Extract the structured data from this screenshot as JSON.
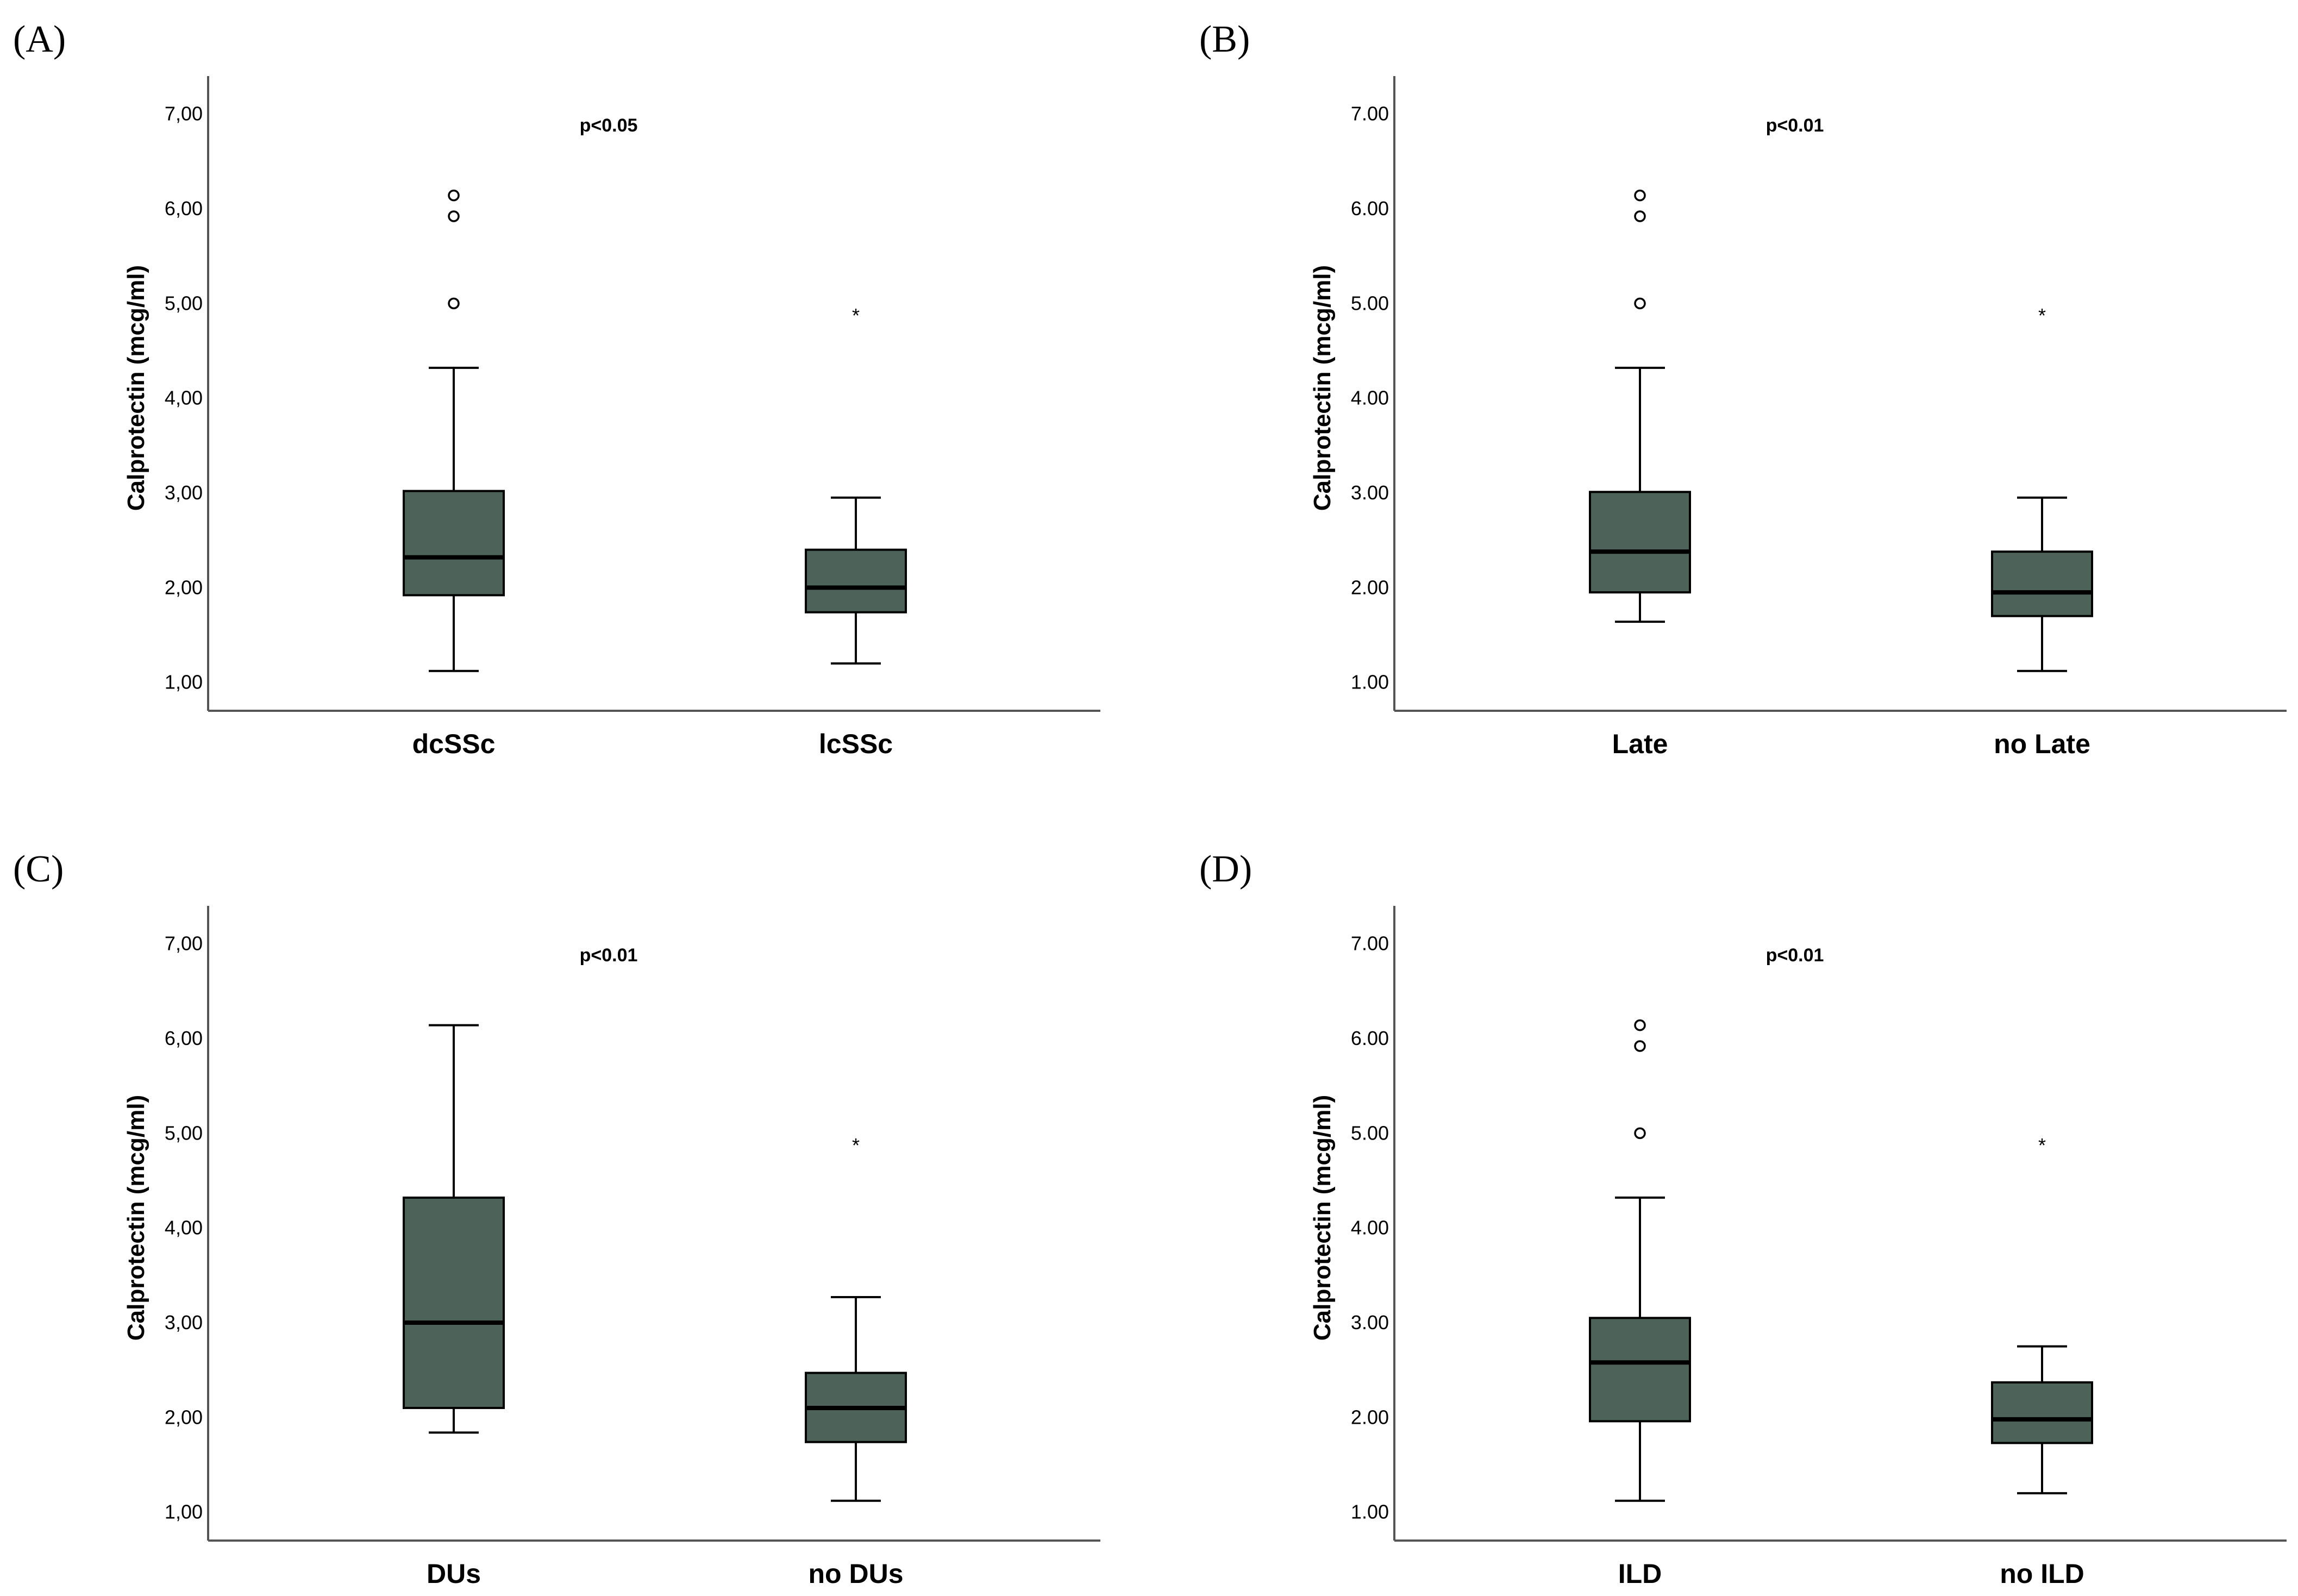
{
  "box_color": "#4d6259",
  "chart_data": [
    {
      "type": "box",
      "panel": "(A)",
      "ylabel": "Calprotectin (mcg/ml)",
      "xlabel": "",
      "ylim": [
        0.7,
        7.4
      ],
      "yticks": [
        "1,00",
        "2,00",
        "3,00",
        "4,00",
        "5,00",
        "6,00",
        "7,00"
      ],
      "ytick_values": [
        1,
        2,
        3,
        4,
        5,
        6,
        7
      ],
      "annotation": "p<0.05",
      "groups": [
        {
          "label": "dcSSc",
          "min": 1.12,
          "q1": 1.92,
          "median": 2.32,
          "q3": 3.02,
          "max": 4.32,
          "outliers": [
            5.0,
            5.92,
            6.14
          ],
          "extremes": []
        },
        {
          "label": "lcSSc",
          "min": 1.2,
          "q1": 1.74,
          "median": 2.0,
          "q3": 2.4,
          "max": 2.95,
          "outliers": [],
          "extremes": [
            4.95
          ]
        }
      ]
    },
    {
      "type": "box",
      "panel": "(B)",
      "ylabel": "Calprotectin (mcg/ml)",
      "xlabel": "",
      "ylim": [
        0.7,
        7.4
      ],
      "yticks": [
        "1.00",
        "2.00",
        "3.00",
        "4.00",
        "5.00",
        "6.00",
        "7.00"
      ],
      "ytick_values": [
        1,
        2,
        3,
        4,
        5,
        6,
        7
      ],
      "annotation": "p<0.01",
      "groups": [
        {
          "label": "Late",
          "min": 1.64,
          "q1": 1.95,
          "median": 2.38,
          "q3": 3.01,
          "max": 4.32,
          "outliers": [
            5.0,
            5.92,
            6.14
          ],
          "extremes": []
        },
        {
          "label": "no Late",
          "min": 1.12,
          "q1": 1.7,
          "median": 1.95,
          "q3": 2.38,
          "max": 2.95,
          "outliers": [],
          "extremes": [
            4.95
          ]
        }
      ]
    },
    {
      "type": "box",
      "panel": "(C)",
      "ylabel": "Calprotectin (mcg/ml)",
      "xlabel": "",
      "ylim": [
        0.7,
        7.4
      ],
      "yticks": [
        "1,00",
        "2,00",
        "3,00",
        "4,00",
        "5,00",
        "6,00",
        "7,00"
      ],
      "ytick_values": [
        1,
        2,
        3,
        4,
        5,
        6,
        7
      ],
      "annotation": "p<0.01",
      "groups": [
        {
          "label": "DUs",
          "min": 1.84,
          "q1": 2.1,
          "median": 3.0,
          "q3": 4.32,
          "max": 6.14,
          "outliers": [],
          "extremes": []
        },
        {
          "label": "no DUs",
          "min": 1.12,
          "q1": 1.74,
          "median": 2.1,
          "q3": 2.47,
          "max": 3.27,
          "outliers": [],
          "extremes": [
            4.95
          ]
        }
      ]
    },
    {
      "type": "box",
      "panel": "(D)",
      "ylabel": "Calprotectin (mcg/ml)",
      "xlabel": "",
      "ylim": [
        0.7,
        7.4
      ],
      "yticks": [
        "1.00",
        "2.00",
        "3.00",
        "4.00",
        "5.00",
        "6.00",
        "7.00"
      ],
      "ytick_values": [
        1,
        2,
        3,
        4,
        5,
        6,
        7
      ],
      "annotation": "p<0.01",
      "groups": [
        {
          "label": "ILD",
          "min": 1.12,
          "q1": 1.96,
          "median": 2.58,
          "q3": 3.05,
          "max": 4.32,
          "outliers": [
            5.0,
            5.92,
            6.14
          ],
          "extremes": []
        },
        {
          "label": "no ILD",
          "min": 1.2,
          "q1": 1.73,
          "median": 1.98,
          "q3": 2.37,
          "max": 2.75,
          "outliers": [],
          "extremes": [
            4.95
          ]
        }
      ]
    }
  ]
}
